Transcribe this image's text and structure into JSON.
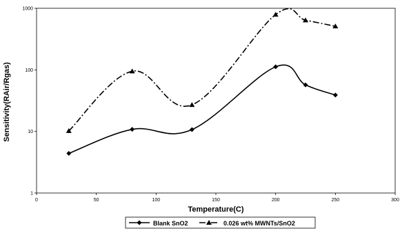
{
  "chart_data": {
    "type": "line",
    "xlabel": "Temperature(C)",
    "ylabel": "Sensitivity(RAir/Rgas)",
    "xlim": [
      0,
      300
    ],
    "ylim": [
      1,
      1000
    ],
    "yscale": "log",
    "grid": false,
    "legend_position": "bottom",
    "x_ticks": [
      "0",
      "50",
      "100",
      "150",
      "200",
      "250",
      "300"
    ],
    "y_ticks": [
      "1",
      "10",
      "100",
      "1000"
    ],
    "series": [
      {
        "name": "Blank SnO2",
        "marker": "diamond",
        "line_style": "solid",
        "color": "#000000",
        "x": [
          27,
          80,
          130,
          200,
          225,
          250
        ],
        "y": [
          4.4,
          10.8,
          10.7,
          112,
          57,
          39
        ]
      },
      {
        "name": "0.026 wt% MWNTs/SnO2",
        "marker": "triangle",
        "line_style": "dash-dot",
        "color": "#000000",
        "x": [
          27,
          80,
          130,
          200,
          225,
          250
        ],
        "y": [
          10.2,
          95,
          27,
          790,
          640,
          510
        ]
      }
    ]
  }
}
